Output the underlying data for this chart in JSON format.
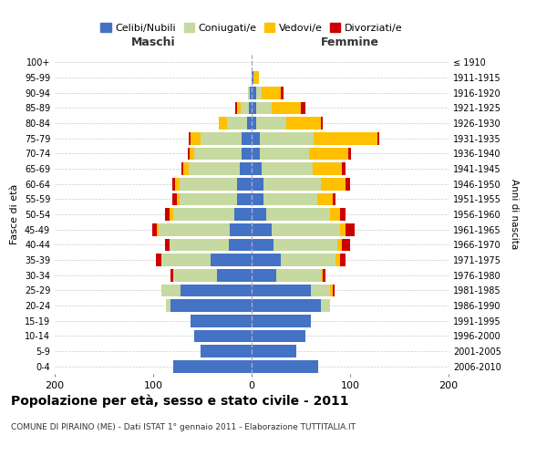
{
  "age_groups": [
    "0-4",
    "5-9",
    "10-14",
    "15-19",
    "20-24",
    "25-29",
    "30-34",
    "35-39",
    "40-44",
    "45-49",
    "50-54",
    "55-59",
    "60-64",
    "65-69",
    "70-74",
    "75-79",
    "80-84",
    "85-89",
    "90-94",
    "95-99",
    "100+"
  ],
  "birth_years": [
    "2006-2010",
    "2001-2005",
    "1996-2000",
    "1991-1995",
    "1986-1990",
    "1981-1985",
    "1976-1980",
    "1971-1975",
    "1966-1970",
    "1961-1965",
    "1956-1960",
    "1951-1955",
    "1946-1950",
    "1941-1945",
    "1936-1940",
    "1931-1935",
    "1926-1930",
    "1921-1925",
    "1916-1920",
    "1911-1915",
    "≤ 1910"
  ],
  "maschi": {
    "celibi": [
      80,
      52,
      58,
      62,
      82,
      72,
      35,
      42,
      23,
      22,
      18,
      15,
      15,
      12,
      10,
      10,
      5,
      3,
      2,
      0,
      0
    ],
    "coniugati": [
      0,
      0,
      0,
      0,
      5,
      20,
      45,
      50,
      60,
      72,
      62,
      58,
      58,
      52,
      48,
      42,
      20,
      8,
      2,
      0,
      0
    ],
    "vedovi": [
      0,
      0,
      0,
      0,
      0,
      0,
      0,
      0,
      0,
      2,
      3,
      3,
      5,
      5,
      5,
      10,
      8,
      4,
      0,
      0,
      0
    ],
    "divorziati": [
      0,
      0,
      0,
      0,
      0,
      0,
      2,
      5,
      5,
      5,
      5,
      5,
      3,
      2,
      2,
      2,
      0,
      2,
      0,
      0,
      0
    ]
  },
  "femmine": {
    "nubili": [
      68,
      45,
      55,
      60,
      70,
      60,
      25,
      30,
      22,
      20,
      15,
      12,
      12,
      10,
      8,
      8,
      5,
      5,
      5,
      2,
      0
    ],
    "coniugate": [
      0,
      0,
      0,
      0,
      10,
      20,
      45,
      55,
      65,
      70,
      65,
      55,
      58,
      52,
      50,
      55,
      30,
      15,
      5,
      0,
      0
    ],
    "vedove": [
      0,
      0,
      0,
      0,
      0,
      2,
      2,
      5,
      5,
      5,
      10,
      15,
      25,
      30,
      40,
      65,
      35,
      30,
      20,
      5,
      0
    ],
    "divorziate": [
      0,
      0,
      0,
      0,
      0,
      2,
      3,
      5,
      8,
      10,
      5,
      3,
      5,
      3,
      3,
      2,
      2,
      5,
      2,
      0,
      0
    ]
  },
  "colors": {
    "celibi_nubili": "#4472c4",
    "coniugati": "#c5d9a0",
    "vedovi": "#ffc000",
    "divorziati": "#cc0000"
  },
  "xlim": [
    -200,
    200
  ],
  "xticks": [
    -200,
    -100,
    0,
    100,
    200
  ],
  "xticklabels": [
    "200",
    "100",
    "0",
    "100",
    "200"
  ],
  "title": "Popolazione per età, sesso e stato civile - 2011",
  "subtitle": "COMUNE DI PIRAINO (ME) - Dati ISTAT 1° gennaio 2011 - Elaborazione TUTTITALIA.IT",
  "ylabel_left": "Fasce di età",
  "ylabel_right": "Anni di nascita",
  "maschi_label": "Maschi",
  "femmine_label": "Femmine",
  "legend_labels": [
    "Celibi/Nubili",
    "Coniugati/e",
    "Vedovi/e",
    "Divorziati/e"
  ],
  "background_color": "#ffffff",
  "grid_color": "#cccccc"
}
